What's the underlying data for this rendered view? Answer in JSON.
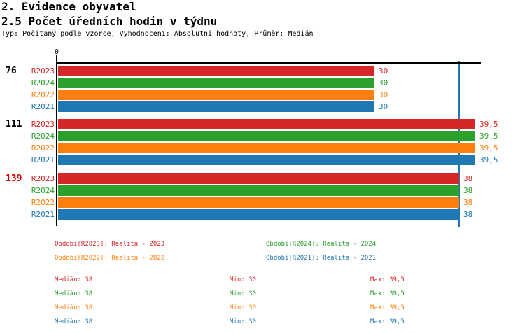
{
  "header": {
    "title_line1": "2. Evidence obyvatel",
    "title_line2": "2.5 Počet úředních hodin v týdnu",
    "subtitle": "Typ: Počítaný podle vzorce, Vyhodnocení: Absolutní hodnoty, Průměr: Medián"
  },
  "colors": {
    "red": "#d62728",
    "green": "#2ca02c",
    "orange": "#ff7f0e",
    "blue": "#1f77b4",
    "black": "#000000",
    "highlight_red": "#d40000",
    "axis": "#000000",
    "median_line": "#1f77b4"
  },
  "chart_data": {
    "type": "bar",
    "orientation": "horizontal",
    "title": "2.5 Počet úředních hodin v týdnu",
    "axis": {
      "origin_label": "0",
      "x_min": 0,
      "x_max": 40,
      "median_line_value": 38
    },
    "series": [
      {
        "name": "R2023",
        "color_key": "red"
      },
      {
        "name": "R2024",
        "color_key": "green"
      },
      {
        "name": "R2022",
        "color_key": "orange"
      },
      {
        "name": "R2021",
        "color_key": "blue"
      }
    ],
    "groups": [
      {
        "label": "76",
        "label_color_key": "black",
        "values": [
          30,
          30,
          30,
          30
        ],
        "value_labels": [
          "30",
          "30",
          "30",
          "30"
        ]
      },
      {
        "label": "111",
        "label_color_key": "black",
        "values": [
          39.5,
          39.5,
          39.5,
          39.5
        ],
        "value_labels": [
          "39,5",
          "39,5",
          "39,5",
          "39,5"
        ]
      },
      {
        "label": "139",
        "label_color_key": "highlight_red",
        "values": [
          38,
          38,
          38,
          38
        ],
        "value_labels": [
          "38",
          "38",
          "38",
          "38"
        ]
      }
    ]
  },
  "legend": {
    "items": [
      {
        "label": "Období[R2023]: Realita - 2023",
        "color_key": "red",
        "col": 0,
        "row": 0
      },
      {
        "label": "Období[R2024]: Realita - 2024",
        "color_key": "green",
        "col": 1,
        "row": 0
      },
      {
        "label": "Období[R2022]: Realita - 2022",
        "color_key": "orange",
        "col": 0,
        "row": 1
      },
      {
        "label": "Období[R2021]: Realita - 2021",
        "color_key": "blue",
        "col": 1,
        "row": 1
      }
    ]
  },
  "stats": {
    "rows": [
      {
        "color_key": "red",
        "median": "Medián: 38",
        "min": "Min: 30",
        "max": "Max: 39,5"
      },
      {
        "color_key": "green",
        "median": "Medián: 38",
        "min": "Min: 30",
        "max": "Max: 39,5"
      },
      {
        "color_key": "orange",
        "median": "Medián: 38",
        "min": "Min: 30",
        "max": "Max: 39,5"
      },
      {
        "color_key": "blue",
        "median": "Medián: 38",
        "min": "Min: 30",
        "max": "Max: 39,5"
      }
    ]
  }
}
